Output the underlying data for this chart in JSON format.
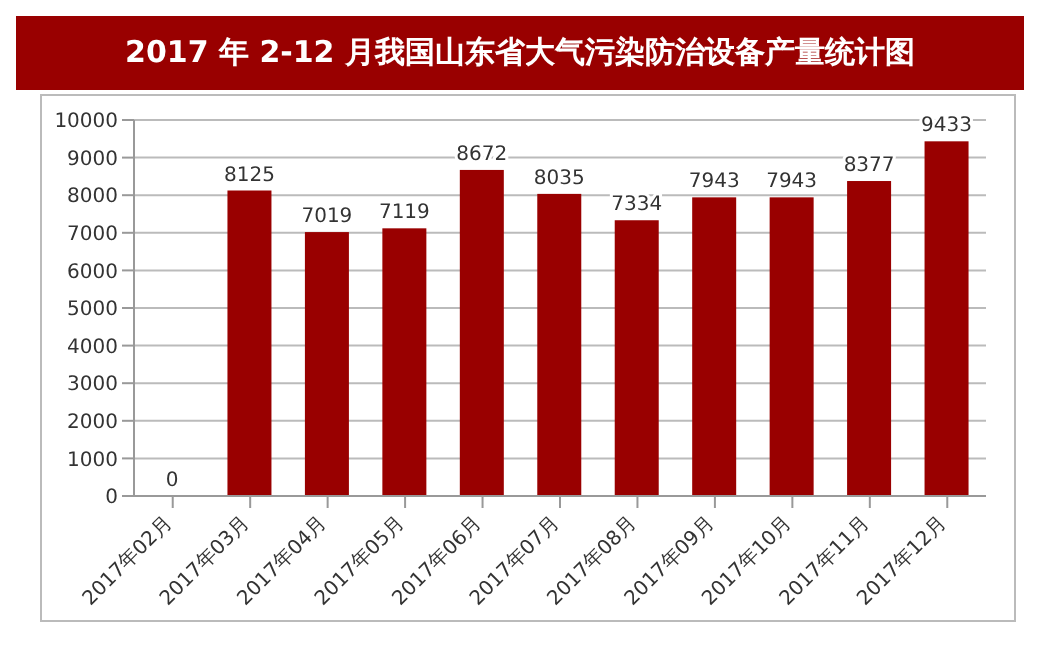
{
  "chart_data": {
    "type": "bar",
    "title": "2017 年 2-12 月我国山东省大气污染防治设备产量统计图",
    "categories": [
      "2017年02月",
      "2017年03月",
      "2017年04月",
      "2017年05月",
      "2017年06月",
      "2017年07月",
      "2017年08月",
      "2017年09月",
      "2017年10月",
      "2017年11月",
      "2017年12月"
    ],
    "values": [
      0,
      8125,
      7019,
      7119,
      8672,
      8035,
      7334,
      7943,
      7943,
      8377,
      9433
    ],
    "color": "#990000",
    "ylim": [
      0,
      10000
    ],
    "yticks": [
      0,
      1000,
      2000,
      3000,
      4000,
      5000,
      6000,
      7000,
      8000,
      9000,
      10000
    ],
    "grid": "y",
    "data_labels": true,
    "legend": false
  }
}
